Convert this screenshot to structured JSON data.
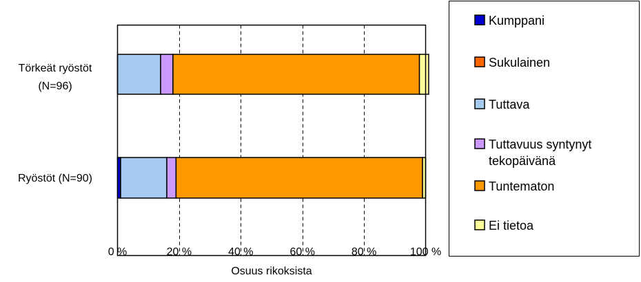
{
  "chart_data": {
    "type": "bar",
    "orientation": "horizontal",
    "stacked": true,
    "categories": [
      [
        "Törkeät ryöstöt",
        "(N=96)"
      ],
      [
        "Ryöstöt (N=90)"
      ]
    ],
    "series": [
      {
        "name": "Kumppani",
        "color": "#0000cc",
        "values": [
          0,
          1
        ]
      },
      {
        "name": "Sukulainen",
        "color": "#ff6600",
        "values": [
          0,
          0
        ]
      },
      {
        "name": "Tuttava",
        "color": "#a6caf0",
        "values": [
          14,
          15
        ]
      },
      {
        "name": "Tuttavuus syntynyt tekopäivänä",
        "color": "#cc99ff",
        "values": [
          4,
          3
        ]
      },
      {
        "name": "Tuntematon",
        "color": "#ff9900",
        "values": [
          80,
          80
        ]
      },
      {
        "name": "Ei tietoa",
        "color": "#ffff99",
        "values": [
          3,
          1
        ]
      }
    ],
    "legend_lines": [
      [
        "Kumppani"
      ],
      [
        "Sukulainen"
      ],
      [
        "Tuttava"
      ],
      [
        "Tuttavuus syntynyt",
        "tekopäivänä"
      ],
      [
        "Tuntematon"
      ],
      [
        "Ei tietoa"
      ]
    ],
    "xlim": [
      0,
      100
    ],
    "xticks": [
      0,
      20,
      40,
      60,
      80,
      100
    ],
    "xtick_labels": [
      "0 %",
      "20 %",
      "40 %",
      "60 %",
      "80 %",
      "100 %"
    ],
    "xlabel": "Osuus rikoksista",
    "ylabel": "",
    "title": "",
    "grid": "vertical dashed",
    "legend_position": "right"
  }
}
